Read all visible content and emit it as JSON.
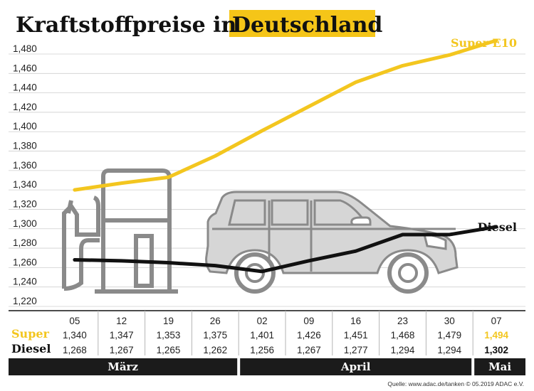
{
  "title": {
    "part1": "Kraftstoffpreise in",
    "part2": "Deutschland"
  },
  "colors": {
    "super": "#f3c61f",
    "diesel": "#111111",
    "car": "#d6d6d6",
    "carStroke": "#8a8a8a",
    "highlight": "#f5c518",
    "monthBar": "#1b1b1b"
  },
  "chart_data": {
    "type": "line",
    "categories": [
      "05",
      "12",
      "19",
      "26",
      "02",
      "09",
      "16",
      "23",
      "30",
      "07"
    ],
    "series": [
      {
        "name": "Super E10",
        "row_label": "Super",
        "values": [
          1.34,
          1.347,
          1.353,
          1.375,
          1.401,
          1.426,
          1.451,
          1.468,
          1.479,
          1.494
        ],
        "value_labels": [
          "1,340",
          "1,347",
          "1,353",
          "1,375",
          "1,401",
          "1,426",
          "1,451",
          "1,468",
          "1,479",
          "1,494"
        ]
      },
      {
        "name": "Diesel",
        "row_label": "Diesel",
        "values": [
          1.268,
          1.267,
          1.265,
          1.262,
          1.256,
          1.267,
          1.277,
          1.294,
          1.294,
          1.302
        ],
        "value_labels": [
          "1,268",
          "1,267",
          "1,265",
          "1,262",
          "1,256",
          "1,267",
          "1,277",
          "1,294",
          "1,294",
          "1,302"
        ]
      }
    ],
    "yticks": [
      "1,220",
      "1,240",
      "1,260",
      "1,280",
      "1,300",
      "1,320",
      "1,340",
      "1,360",
      "1,380",
      "1,400",
      "1,420",
      "1,440",
      "1,460",
      "1,480"
    ],
    "ylim": [
      1.22,
      1.48
    ],
    "grid": true,
    "months": [
      {
        "label": "März",
        "span": [
          0,
          4
        ]
      },
      {
        "label": "April",
        "span": [
          4,
          9
        ]
      },
      {
        "label": "Mai",
        "span": [
          9,
          10
        ]
      }
    ]
  },
  "source": "Quelle: www.adac.de/tanken   © 05.2019  ADAC e.V."
}
